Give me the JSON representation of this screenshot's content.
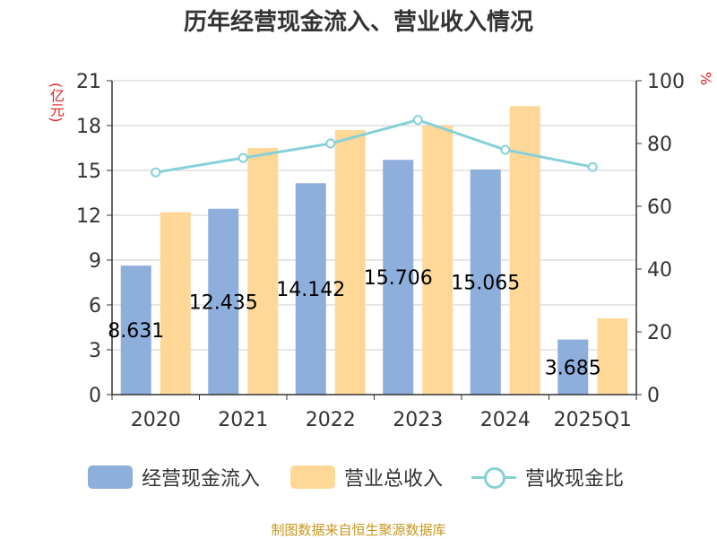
{
  "title": "历年经营现金流入、营业收入情况",
  "source": "制图数据来自恒生聚源数据库",
  "colors": {
    "series1": "#8eaedb",
    "series2": "#ffd898",
    "series3": "#86d1d8"
  },
  "chart_data": {
    "type": "bar",
    "title": "历年经营现金流入、营业收入情况",
    "categories": [
      "2020",
      "2021",
      "2022",
      "2023",
      "2024",
      "2025Q1"
    ],
    "ylabel": "(亿元)",
    "y2label": "%",
    "ylim": [
      0,
      21
    ],
    "y2lim": [
      0,
      100
    ],
    "yticks": [
      "0",
      "3",
      "6",
      "9",
      "12",
      "15",
      "18",
      "21"
    ],
    "y2ticks": [
      "0",
      "20",
      "40",
      "60",
      "80",
      "100"
    ],
    "grid": true,
    "legend_position": "bottom",
    "series": [
      {
        "name": "经营现金流入",
        "type": "bar",
        "axis": "left",
        "values": [
          8.631,
          12.435,
          14.142,
          15.706,
          15.065,
          3.685
        ],
        "labels": [
          "8.631",
          "12.435",
          "14.142",
          "15.706",
          "15.065",
          "3.685"
        ]
      },
      {
        "name": "营业总收入",
        "type": "bar",
        "axis": "left",
        "values": [
          12.2,
          16.5,
          17.7,
          18.0,
          19.3,
          5.1
        ]
      },
      {
        "name": "营收现金比",
        "type": "line",
        "axis": "right",
        "values": [
          70.8,
          75.4,
          80.0,
          87.5,
          78.0,
          72.5
        ]
      }
    ]
  }
}
